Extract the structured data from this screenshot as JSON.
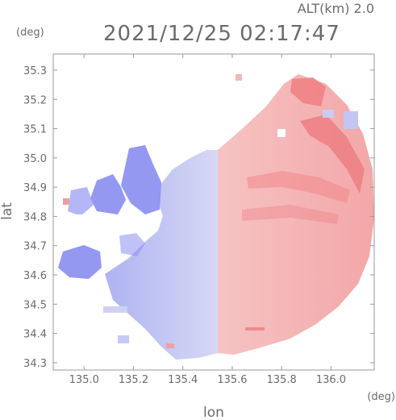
{
  "chart_data": {
    "type": "heatmap",
    "title": "2021/12/25 02:17:47",
    "subtitle": "ALT(km) 2.0",
    "xlabel": "lon",
    "ylabel": "lat",
    "x_unit": "(deg)",
    "y_unit": "(deg)",
    "xlim": [
      134.875,
      136.175
    ],
    "ylim": [
      34.275,
      35.355
    ],
    "x_ticks": [
      135.0,
      135.2,
      135.4,
      135.6,
      135.8,
      136.0
    ],
    "x_tick_labels": [
      "135.0",
      "135.2",
      "135.4",
      "135.6",
      "135.8",
      "136.0"
    ],
    "y_ticks": [
      34.3,
      34.4,
      34.5,
      34.6,
      34.7,
      34.8,
      34.9,
      35.0,
      35.1,
      35.2,
      35.3
    ],
    "y_tick_labels": [
      "34.3",
      "34.4",
      "34.5",
      "34.6",
      "34.7",
      "34.8",
      "34.9",
      "35.0",
      "35.1",
      "35.2",
      "35.3"
    ],
    "grid": false,
    "legend": "none",
    "colors": {
      "receding": "#f4a3a6",
      "receding_strong": "#ef6f74",
      "approaching": "#b9bff2",
      "approaching_strong": "#7b7ef0",
      "near_zero": "#dcdcec",
      "frame": "#9a9a9a"
    },
    "regions": [
      {
        "sign": "positive",
        "lon": [
          135.56,
          136.16
        ],
        "lat": [
          34.29,
          35.34
        ],
        "value": "weak-to-moderate positive"
      },
      {
        "sign": "positive_strong",
        "lon": [
          135.78,
          136.12
        ],
        "lat": [
          34.85,
          35.3
        ],
        "value": "strong positive bands"
      },
      {
        "sign": "negative",
        "lon": [
          135.15,
          135.56
        ],
        "lat": [
          34.3,
          35.02
        ],
        "value": "weak negative"
      },
      {
        "sign": "negative_strong",
        "lon": [
          134.93,
          135.35
        ],
        "lat": [
          34.5,
          34.98
        ],
        "value": "moderate negative patches"
      }
    ]
  }
}
